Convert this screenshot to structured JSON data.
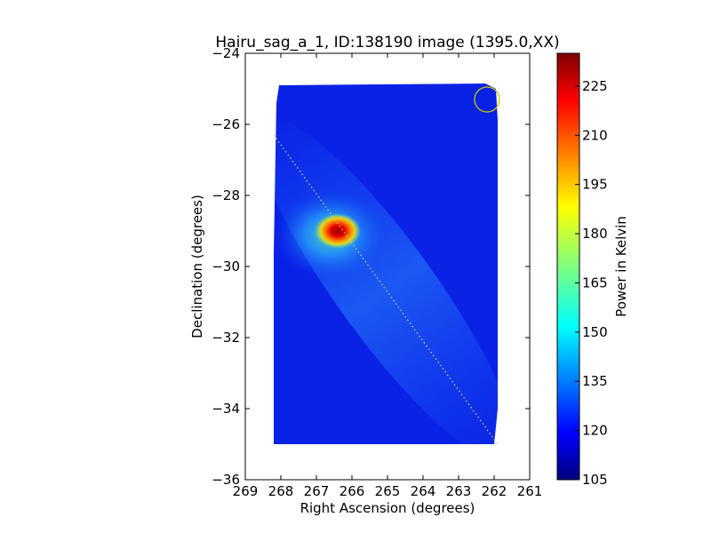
{
  "chart_data": {
    "type": "heatmap",
    "title": "Hairu_sag_a_1, ID:138190 image (1395.0,XX)",
    "xlabel": "Right Ascension (degrees)",
    "ylabel": "Declination (degrees)",
    "xlim": [
      269,
      261
    ],
    "ylim": [
      -36,
      -24
    ],
    "x_ticks": [
      269,
      268,
      267,
      266,
      265,
      264,
      263,
      262,
      261
    ],
    "y_ticks": [
      -24,
      -26,
      -28,
      -30,
      -32,
      -34,
      -36
    ],
    "x_tick_labels": [
      "269",
      "268",
      "267",
      "266",
      "265",
      "264",
      "263",
      "262",
      "261"
    ],
    "y_tick_labels": [
      "−24",
      "−26",
      "−28",
      "−30",
      "−32",
      "−34",
      "−36"
    ],
    "colormap": "jet",
    "colorbar": {
      "label": "Power in Kelvin",
      "range": [
        105,
        235
      ],
      "ticks": [
        105,
        120,
        135,
        150,
        165,
        180,
        195,
        210,
        225
      ],
      "tick_labels": [
        "105",
        "120",
        "135",
        "150",
        "165",
        "180",
        "195",
        "210",
        "225"
      ]
    },
    "map_footprint": {
      "ra_range": [
        261.9,
        268.2
      ],
      "dec_range": [
        -35.0,
        -24.9
      ],
      "background_level": 112
    },
    "hotspot": {
      "ra": 266.4,
      "dec": -29.0,
      "peak": 235
    },
    "marker_circle": {
      "ra": 262.2,
      "dec": -25.3,
      "color": "#c8c800"
    },
    "dotted_line": {
      "start": [
        268.2,
        -26.3
      ],
      "end": [
        261.9,
        -35.0
      ],
      "color": "#d8d870"
    }
  }
}
